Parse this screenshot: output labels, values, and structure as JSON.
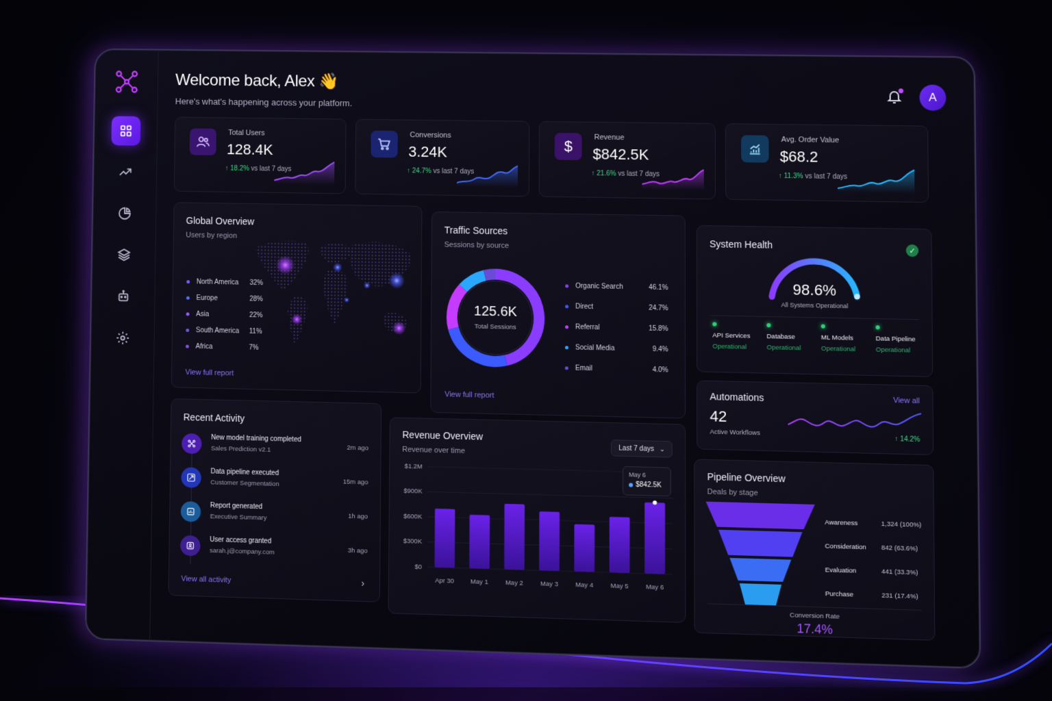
{
  "header": {
    "title": "Welcome back, Alex",
    "wave": "👋",
    "subtitle": "Here's what's happening across your platform.",
    "avatar_initial": "A"
  },
  "sidebar": {
    "items": [
      {
        "name": "dashboard",
        "icon": "grid-icon",
        "active": true
      },
      {
        "name": "analytics",
        "icon": "trending-icon"
      },
      {
        "name": "reports",
        "icon": "pie-icon"
      },
      {
        "name": "layers",
        "icon": "layers-icon"
      },
      {
        "name": "automation",
        "icon": "robot-icon"
      },
      {
        "name": "settings",
        "icon": "gear-icon"
      }
    ]
  },
  "kpis": [
    {
      "label": "Total Users",
      "value": "128.4K",
      "delta": "18.2%",
      "delta_suffix": "vs last 7 days",
      "icon": "users-icon",
      "color": "#a14dff"
    },
    {
      "label": "Conversions",
      "value": "3.24K",
      "delta": "24.7%",
      "delta_suffix": "vs last 7 days",
      "icon": "cart-icon",
      "color": "#3f6bff"
    },
    {
      "label": "Revenue",
      "value": "$842.5K",
      "delta": "21.6%",
      "delta_suffix": "vs last 7 days",
      "icon": "dollar-icon",
      "color": "#c03cff"
    },
    {
      "label": "Avg. Order Value",
      "value": "$68.2",
      "delta": "11.3%",
      "delta_suffix": "vs last 7 days",
      "icon": "chart-up-icon",
      "color": "#27b6ff"
    }
  ],
  "global_overview": {
    "title": "Global Overview",
    "subtitle": "Users by region",
    "regions": [
      {
        "name": "North America",
        "pct": "32%"
      },
      {
        "name": "Europe",
        "pct": "28%"
      },
      {
        "name": "Asia",
        "pct": "22%"
      },
      {
        "name": "South America",
        "pct": "11%"
      },
      {
        "name": "Africa",
        "pct": "7%"
      }
    ],
    "link": "View full report"
  },
  "traffic": {
    "title": "Traffic Sources",
    "subtitle": "Sessions by source",
    "total": "125.6K",
    "total_label": "Total Sessions",
    "sources": [
      {
        "name": "Organic Search",
        "pct": "46.1%",
        "value": 46.1,
        "color": "#8a3dff"
      },
      {
        "name": "Direct",
        "pct": "24.7%",
        "value": 24.7,
        "color": "#3b5bff"
      },
      {
        "name": "Referral",
        "pct": "15.8%",
        "value": 15.8,
        "color": "#c63cff"
      },
      {
        "name": "Social Media",
        "pct": "9.4%",
        "value": 9.4,
        "color": "#2aa8ff"
      },
      {
        "name": "Email",
        "pct": "4.0%",
        "value": 4.0,
        "color": "#6a4bd8"
      }
    ],
    "link": "View full report"
  },
  "health": {
    "title": "System Health",
    "value": "98.6%",
    "gauge_fraction": 0.986,
    "label": "All Systems Operational",
    "services": [
      {
        "name": "API Services",
        "status": "Operational"
      },
      {
        "name": "Database",
        "status": "Operational"
      },
      {
        "name": "ML Models",
        "status": "Operational"
      },
      {
        "name": "Data Pipeline",
        "status": "Operational"
      }
    ]
  },
  "automations": {
    "title": "Automations",
    "link": "View all",
    "count": "42",
    "count_label": "Active Workflows",
    "delta": "14.2%"
  },
  "activity": {
    "title": "Recent Activity",
    "items": [
      {
        "title": "New model training completed",
        "sub": "Sales Prediction v2.1",
        "time": "2m ago",
        "icon": "model-icon",
        "color": "#6a2ae0"
      },
      {
        "title": "Data pipeline executed",
        "sub": "Customer Segmentation",
        "time": "15m ago",
        "icon": "pipeline-icon",
        "color": "#2c3fd6"
      },
      {
        "title": "Report generated",
        "sub": "Executive Summary",
        "time": "1h ago",
        "icon": "report-icon",
        "color": "#1f6fb8"
      },
      {
        "title": "User access granted",
        "sub": "sarah.j@company.com",
        "time": "3h ago",
        "icon": "user-check-icon",
        "color": "#5a2ac0"
      }
    ],
    "link": "View all activity"
  },
  "revenue": {
    "title": "Revenue Overview",
    "subtitle": "Revenue over time",
    "range": "Last 7 days",
    "tooltip_date": "May 6",
    "tooltip_value": "$842.5K"
  },
  "chart_data": {
    "type": "bar",
    "categories": [
      "Apr 30",
      "May 1",
      "May 2",
      "May 3",
      "May 4",
      "May 5",
      "May 6"
    ],
    "values": [
      700,
      640,
      780,
      700,
      560,
      660,
      842.5
    ],
    "yticks": [
      "$1.2M",
      "$900K",
      "$600K",
      "$300K",
      "$0"
    ],
    "ylim": [
      0,
      1200
    ]
  },
  "pipeline": {
    "title": "Pipeline Overview",
    "subtitle": "Deals by stage",
    "stages": [
      {
        "name": "Awareness",
        "value": "1,324 (100%)"
      },
      {
        "name": "Consideration",
        "value": "842 (63.6%)"
      },
      {
        "name": "Evaluation",
        "value": "441 (33.3%)"
      },
      {
        "name": "Purchase",
        "value": "231 (17.4%)"
      }
    ],
    "conversion_label": "Conversion Rate",
    "conversion_value": "17.4%"
  }
}
